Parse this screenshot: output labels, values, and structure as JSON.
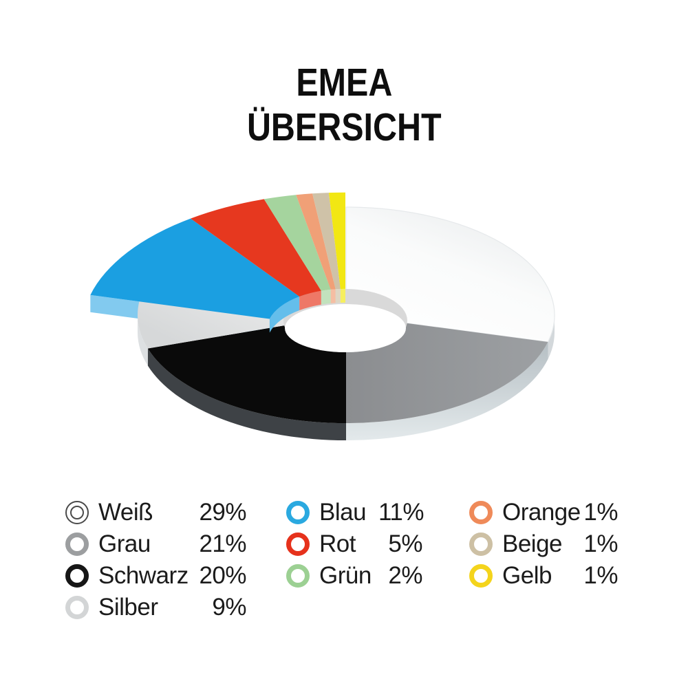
{
  "title": {
    "line1": "EMEA",
    "line2": "ÜBERSICHT"
  },
  "chart_data": {
    "type": "pie",
    "title": "EMEA ÜBERSICHT",
    "unit": "percent",
    "donut": true,
    "direction": "clockwise",
    "start_angle_deg": 0,
    "legend_position": "bottom",
    "exploded_group": [
      "Blau",
      "Rot",
      "Grün",
      "Orange",
      "Beige",
      "Gelb"
    ],
    "slices": [
      {
        "label": "Weiß",
        "value": 29,
        "value_label": "29%",
        "color": "#FFFFFF",
        "side": "#D3D8DB",
        "exploded": false
      },
      {
        "label": "Grau",
        "value": 21,
        "value_label": "21%",
        "color": "#929497",
        "side": "#C5CED3",
        "exploded": false
      },
      {
        "label": "Schwarz",
        "value": 20,
        "value_label": "20%",
        "color": "#0A0A0A",
        "side": "#3E4246",
        "exploded": false
      },
      {
        "label": "Silber",
        "value": 9,
        "value_label": "9%",
        "color": "#E3E4E5",
        "side": "#DDE0E2",
        "exploded": false
      },
      {
        "label": "Blau",
        "value": 11,
        "value_label": "11%",
        "color": "#1B9FE1",
        "side": "#82CAEE",
        "exploded": true
      },
      {
        "label": "Rot",
        "value": 5,
        "value_label": "5%",
        "color": "#E6381F",
        "side": "#EE7867",
        "exploded": true
      },
      {
        "label": "Grün",
        "value": 2,
        "value_label": "2%",
        "color": "#A5D49E",
        "side": "#BDDEB7",
        "exploded": true
      },
      {
        "label": "Orange",
        "value": 1,
        "value_label": "1%",
        "color": "#F0A077",
        "side": "#F5B292",
        "exploded": true
      },
      {
        "label": "Beige",
        "value": 1,
        "value_label": "1%",
        "color": "#CFC2A8",
        "side": "#DED4B9",
        "exploded": true
      },
      {
        "label": "Gelb",
        "value": 1,
        "value_label": "1%",
        "color": "#F2E713",
        "side": "#F6EF5A",
        "exploded": true
      }
    ],
    "hole_wall_color": "#D9D9D9",
    "hole_fill_color": "#FFFFFF"
  },
  "legend": {
    "columns": [
      {
        "items": [
          {
            "label": "Weiß",
            "value": "29%",
            "ring": "#FFFFFF",
            "double_ring": true,
            "ring_outline": "#4A4A4A"
          },
          {
            "label": "Grau",
            "value": "21%",
            "ring": "#9C9EA0",
            "double_ring": false
          },
          {
            "label": "Schwarz",
            "value": "20%",
            "ring": "#161616",
            "double_ring": false
          },
          {
            "label": "Silber",
            "value": "9%",
            "ring": "#D3D5D6",
            "double_ring": false
          }
        ]
      },
      {
        "items": [
          {
            "label": "Blau",
            "value": "11%",
            "ring": "#2AA9E0",
            "double_ring": false
          },
          {
            "label": "Rot",
            "value": "5%",
            "ring": "#E6321C",
            "double_ring": false
          },
          {
            "label": "Grün",
            "value": "2%",
            "ring": "#9CD093",
            "double_ring": false
          }
        ]
      },
      {
        "items": [
          {
            "label": "Orange",
            "value": "1%",
            "ring": "#EF8A59",
            "double_ring": false
          },
          {
            "label": "Beige",
            "value": "1%",
            "ring": "#CDC0A4",
            "double_ring": false
          },
          {
            "label": "Gelb",
            "value": "1%",
            "ring": "#F4D41C",
            "double_ring": false
          }
        ]
      }
    ]
  }
}
